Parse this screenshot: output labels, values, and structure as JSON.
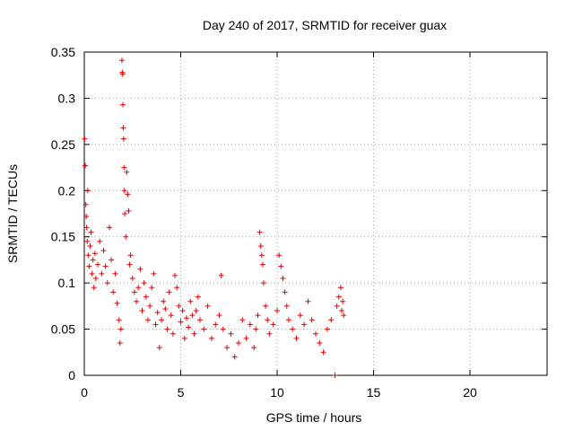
{
  "chart_data": {
    "type": "scatter",
    "title": "Day 240 of 2017, SRMTID for receiver guax",
    "xlabel": "GPS time / hours",
    "ylabel": "SRMTID / TECUs",
    "xlim": [
      0,
      24
    ],
    "ylim": [
      0,
      0.35
    ],
    "xticks": [
      0,
      5,
      10,
      15,
      20
    ],
    "xtick_labels": [
      "0",
      "5",
      "10",
      "15",
      "20"
    ],
    "yticks": [
      0,
      0.05,
      0.1,
      0.15,
      0.2,
      0.25,
      0.3,
      0.35
    ],
    "ytick_labels": [
      "0",
      "0.05",
      "0.1",
      "0.15",
      "0.2",
      "0.25",
      "0.3",
      "0.35"
    ],
    "grid": true,
    "marker": "+",
    "marker_color": "#e00000",
    "series": [
      {
        "name": "SRMTID",
        "points": [
          [
            0.02,
            0.256
          ],
          [
            0.05,
            0.227
          ],
          [
            0.08,
            0.185
          ],
          [
            0.1,
            0.172
          ],
          [
            0.12,
            0.16
          ],
          [
            0.15,
            0.145
          ],
          [
            0.18,
            0.2
          ],
          [
            0.2,
            0.13
          ],
          [
            0.25,
            0.118
          ],
          [
            0.3,
            0.14
          ],
          [
            0.35,
            0.155
          ],
          [
            0.4,
            0.11
          ],
          [
            0.45,
            0.125
          ],
          [
            0.5,
            0.095
          ],
          [
            0.55,
            0.132
          ],
          [
            0.6,
            0.105
          ],
          [
            0.7,
            0.12
          ],
          [
            0.8,
            0.145
          ],
          [
            0.9,
            0.11
          ],
          [
            1.0,
            0.135
          ],
          [
            1.1,
            0.118
          ],
          [
            1.2,
            0.1
          ],
          [
            1.3,
            0.16
          ],
          [
            1.4,
            0.125
          ],
          [
            1.5,
            0.09
          ],
          [
            1.6,
            0.11
          ],
          [
            1.7,
            0.078
          ],
          [
            1.8,
            0.06
          ],
          [
            1.85,
            0.035
          ],
          [
            1.9,
            0.05
          ],
          [
            1.95,
            0.341
          ],
          [
            1.97,
            0.328
          ],
          [
            1.99,
            0.326
          ],
          [
            2.0,
            0.293
          ],
          [
            2.02,
            0.268
          ],
          [
            2.04,
            0.256
          ],
          [
            2.06,
            0.225
          ],
          [
            2.08,
            0.2
          ],
          [
            2.1,
            0.175
          ],
          [
            2.15,
            0.15
          ],
          [
            2.2,
            0.22
          ],
          [
            2.25,
            0.196
          ],
          [
            2.3,
            0.178
          ],
          [
            2.35,
            0.12
          ],
          [
            2.4,
            0.13
          ],
          [
            2.5,
            0.105
          ],
          [
            2.6,
            0.09
          ],
          [
            2.7,
            0.08
          ],
          [
            2.8,
            0.095
          ],
          [
            2.9,
            0.115
          ],
          [
            3.0,
            0.07
          ],
          [
            3.1,
            0.1
          ],
          [
            3.2,
            0.085
          ],
          [
            3.3,
            0.06
          ],
          [
            3.4,
            0.075
          ],
          [
            3.5,
            0.095
          ],
          [
            3.6,
            0.11
          ],
          [
            3.7,
            0.055
          ],
          [
            3.8,
            0.068
          ],
          [
            3.9,
            0.03
          ],
          [
            4.0,
            0.06
          ],
          [
            4.1,
            0.08
          ],
          [
            4.2,
            0.072
          ],
          [
            4.3,
            0.05
          ],
          [
            4.4,
            0.09
          ],
          [
            4.5,
            0.065
          ],
          [
            4.6,
            0.045
          ],
          [
            4.7,
            0.108
          ],
          [
            4.8,
            0.095
          ],
          [
            4.9,
            0.075
          ],
          [
            5.0,
            0.058
          ],
          [
            5.1,
            0.07
          ],
          [
            5.2,
            0.04
          ],
          [
            5.3,
            0.062
          ],
          [
            5.4,
            0.052
          ],
          [
            5.5,
            0.08
          ],
          [
            5.6,
            0.065
          ],
          [
            5.7,
            0.045
          ],
          [
            5.8,
            0.07
          ],
          [
            5.9,
            0.085
          ],
          [
            6.0,
            0.06
          ],
          [
            6.2,
            0.05
          ],
          [
            6.4,
            0.075
          ],
          [
            6.6,
            0.04
          ],
          [
            6.8,
            0.055
          ],
          [
            7.0,
            0.065
          ],
          [
            7.1,
            0.108
          ],
          [
            7.2,
            0.05
          ],
          [
            7.4,
            0.03
          ],
          [
            7.6,
            0.045
          ],
          [
            7.8,
            0.02
          ],
          [
            8.0,
            0.035
          ],
          [
            8.2,
            0.06
          ],
          [
            8.4,
            0.04
          ],
          [
            8.6,
            0.055
          ],
          [
            8.8,
            0.03
          ],
          [
            8.9,
            0.05
          ],
          [
            9.0,
            0.065
          ],
          [
            9.1,
            0.155
          ],
          [
            9.15,
            0.14
          ],
          [
            9.2,
            0.13
          ],
          [
            9.25,
            0.12
          ],
          [
            9.3,
            0.1
          ],
          [
            9.4,
            0.075
          ],
          [
            9.5,
            0.06
          ],
          [
            9.6,
            0.045
          ],
          [
            9.8,
            0.055
          ],
          [
            10.0,
            0.07
          ],
          [
            10.1,
            0.13
          ],
          [
            10.2,
            0.118
          ],
          [
            10.3,
            0.105
          ],
          [
            10.4,
            0.09
          ],
          [
            10.5,
            0.075
          ],
          [
            10.6,
            0.06
          ],
          [
            10.8,
            0.05
          ],
          [
            11.0,
            0.04
          ],
          [
            11.2,
            0.065
          ],
          [
            11.4,
            0.055
          ],
          [
            11.6,
            0.08
          ],
          [
            11.8,
            0.06
          ],
          [
            12.0,
            0.045
          ],
          [
            12.2,
            0.035
          ],
          [
            12.4,
            0.025
          ],
          [
            12.6,
            0.05
          ],
          [
            12.8,
            0.06
          ],
          [
            13.0,
            0.0
          ],
          [
            13.1,
            0.075
          ],
          [
            13.2,
            0.085
          ],
          [
            13.3,
            0.095
          ],
          [
            13.35,
            0.07
          ],
          [
            13.4,
            0.08
          ],
          [
            13.45,
            0.065
          ]
        ]
      }
    ]
  }
}
